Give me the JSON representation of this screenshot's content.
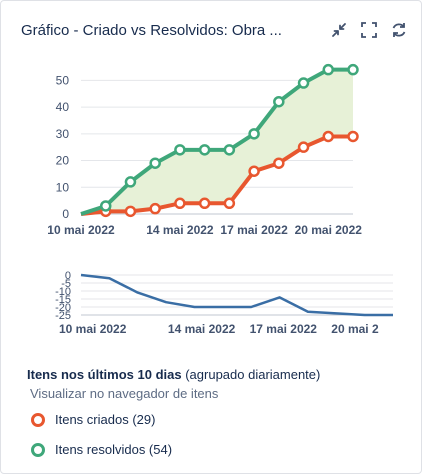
{
  "header": {
    "title": "Gráfico - Criado vs Resolvidos: Obra ...",
    "icons": [
      "minimize-icon",
      "fullscreen-icon",
      "refresh-icon"
    ]
  },
  "colors": {
    "created": "#e8572f",
    "resolved": "#3fa77a",
    "area": "#e7f1d7",
    "trend": "#3a6ea5"
  },
  "chart_data": [
    {
      "type": "line",
      "x": [
        "2022-05-10",
        "2022-05-11",
        "2022-05-12",
        "2022-05-13",
        "2022-05-14",
        "2022-05-15",
        "2022-05-16",
        "2022-05-17",
        "2022-05-18",
        "2022-05-19",
        "2022-05-20",
        "2022-05-21"
      ],
      "series": [
        {
          "name": "Itens criados",
          "values": [
            0,
            1,
            1,
            2,
            4,
            4,
            4,
            16,
            19,
            25,
            29,
            29
          ]
        },
        {
          "name": "Itens resolvidos",
          "values": [
            0,
            3,
            12,
            19,
            24,
            24,
            24,
            30,
            42,
            49,
            54,
            54
          ]
        }
      ],
      "yticks": [
        0,
        10,
        20,
        30,
        40,
        50
      ],
      "ylim": [
        0,
        55
      ],
      "xtick_labels": [
        "10 mai 2022",
        "14 mai 2022",
        "17 mai 2022",
        "20 mai 2022"
      ],
      "grid": true
    },
    {
      "type": "line",
      "x": [
        "2022-05-10",
        "2022-05-11",
        "2022-05-12",
        "2022-05-13",
        "2022-05-14",
        "2022-05-15",
        "2022-05-16",
        "2022-05-17",
        "2022-05-18",
        "2022-05-19",
        "2022-05-20",
        "2022-05-21"
      ],
      "series": [
        {
          "values": [
            0,
            -2,
            -11,
            -17,
            -20,
            -20,
            -20,
            -14,
            -23,
            -24,
            -25,
            -25
          ]
        }
      ],
      "yticks": [
        0,
        -5,
        -10,
        -15,
        -20,
        -25
      ],
      "ylim": [
        -25,
        0
      ],
      "xtick_labels": [
        "10 mai 2022",
        "14 mai 2022",
        "17 mai 2022",
        "20 mai 2"
      ],
      "grid": true
    }
  ],
  "legend": {
    "title_bold": "Itens nos últimos 10 dias",
    "title_rest": " (agrupado diariamente)",
    "link": "Visualizar no navegador de itens",
    "items": [
      {
        "label": "Itens criados (29)"
      },
      {
        "label": "Itens resolvidos (54)"
      }
    ]
  }
}
